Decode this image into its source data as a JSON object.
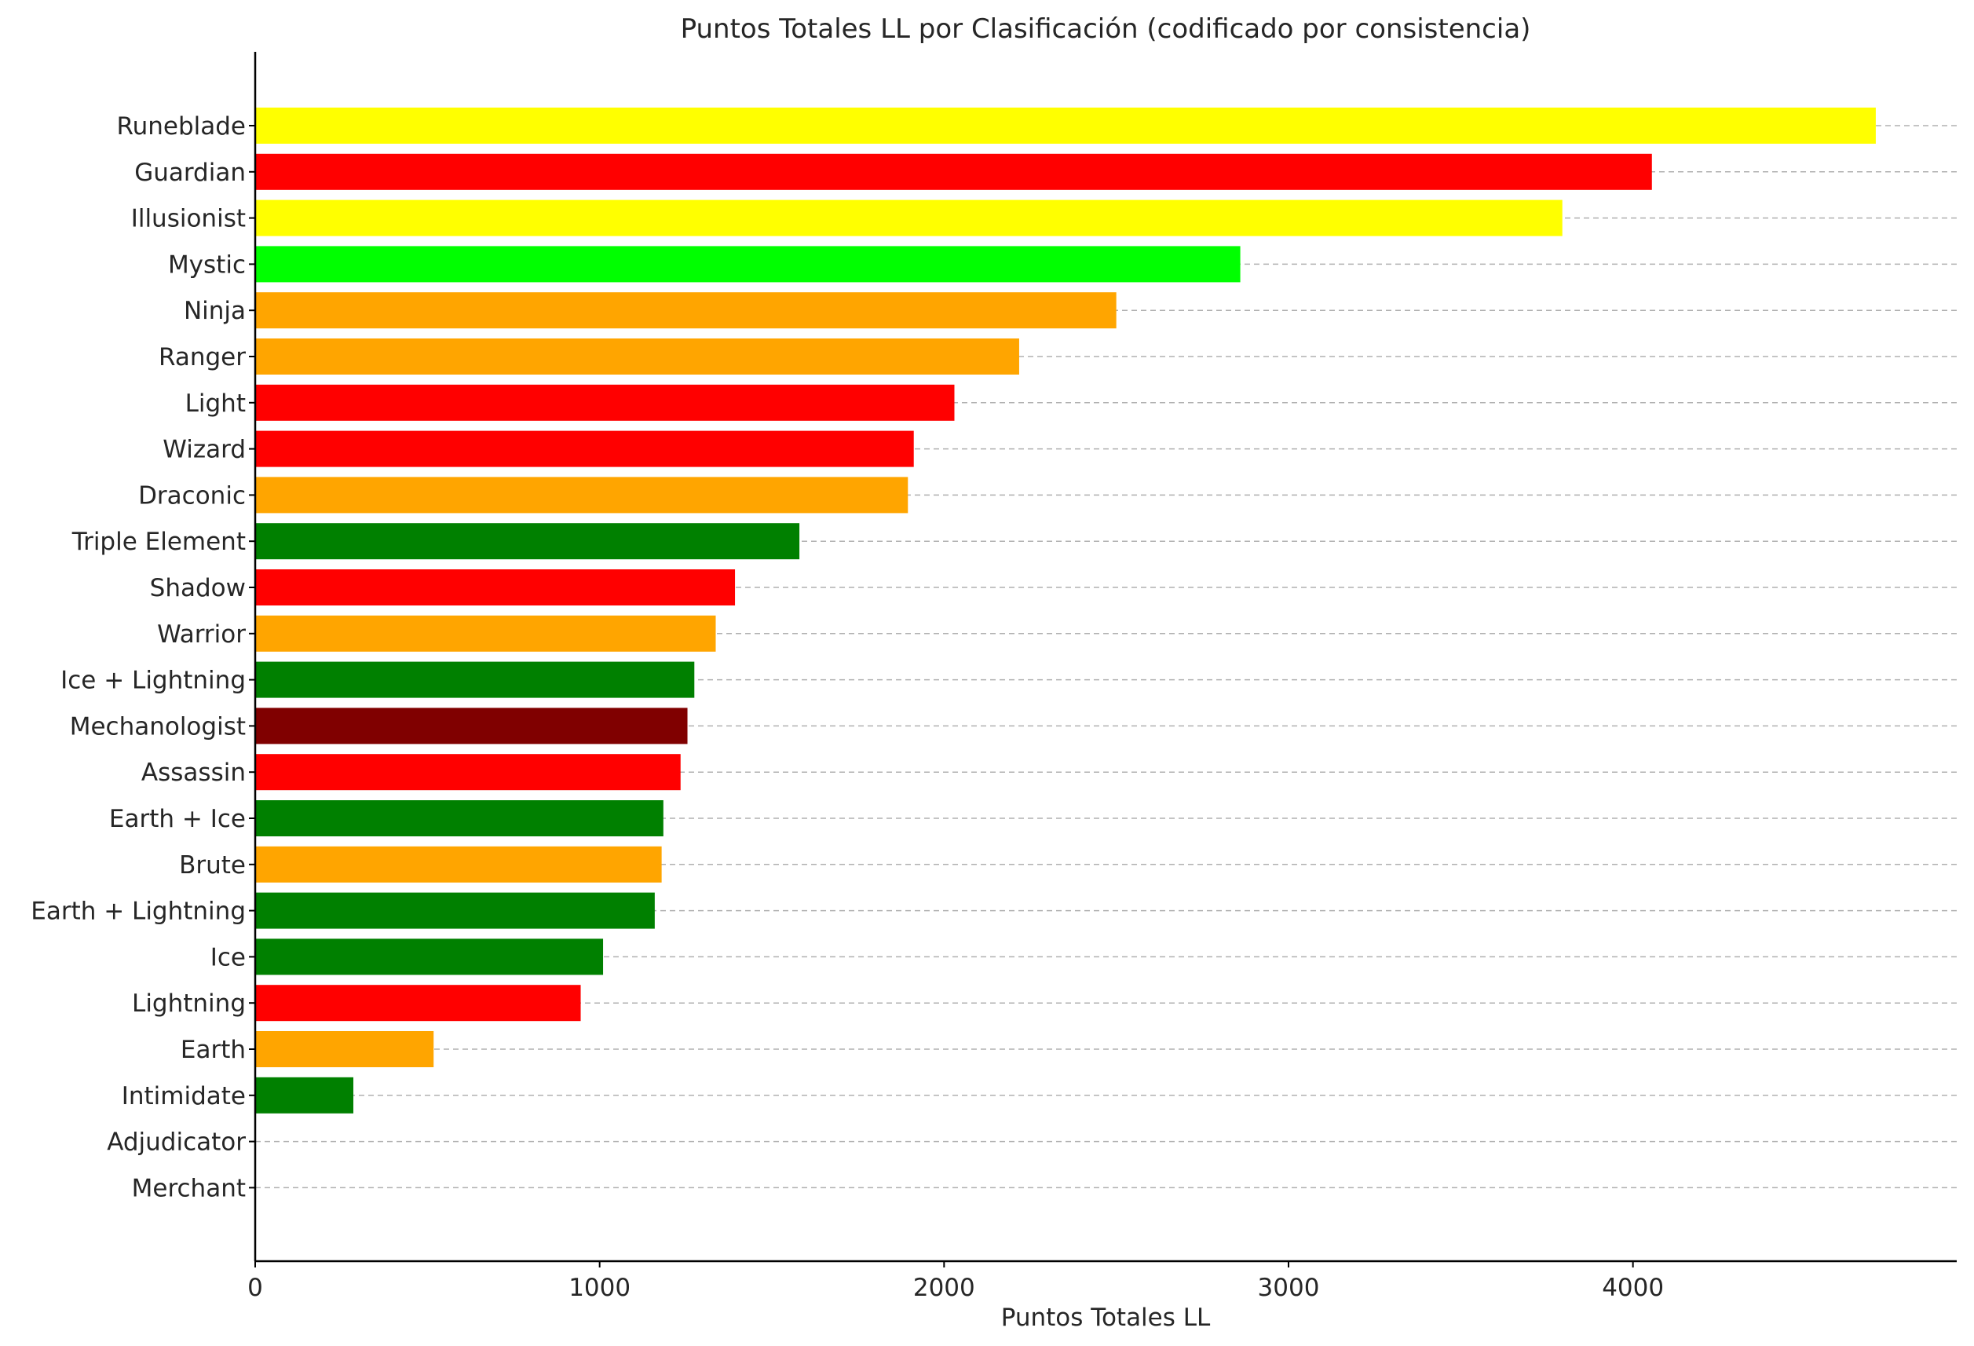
{
  "chart_data": {
    "type": "bar",
    "orientation": "horizontal",
    "title": "Puntos Totales LL por Clasificación (codificado por consistencia)",
    "xlabel": "Puntos Totales LL",
    "ylabel": "",
    "xlim": [
      0,
      4940
    ],
    "xticks": [
      0,
      1000,
      2000,
      3000,
      4000
    ],
    "grid": "horizontal dashed",
    "categories": [
      "Runeblade",
      "Guardian",
      "Illusionist",
      "Mystic",
      "Ninja",
      "Ranger",
      "Light",
      "Wizard",
      "Draconic",
      "Triple Element",
      "Shadow",
      "Warrior",
      "Ice + Lightning",
      "Mechanologist",
      "Assassin",
      "Earth + Ice",
      "Brute",
      "Earth + Lightning",
      "Ice",
      "Lightning",
      "Earth",
      "Intimidate",
      "Adjudicator",
      "Merchant"
    ],
    "values": [
      4705,
      4055,
      3795,
      2860,
      2500,
      2218,
      2030,
      1912,
      1895,
      1580,
      1393,
      1337,
      1275,
      1255,
      1235,
      1185,
      1180,
      1160,
      1010,
      945,
      518,
      285,
      0,
      0
    ],
    "colors": [
      "#ffff00",
      "#ff0000",
      "#ffff00",
      "#00ff00",
      "#ffa500",
      "#ffa500",
      "#ff0000",
      "#ff0000",
      "#ffa500",
      "#008000",
      "#ff0000",
      "#ffa500",
      "#008000",
      "#800000",
      "#ff0000",
      "#008000",
      "#ffa500",
      "#008000",
      "#008000",
      "#ff0000",
      "#ffa500",
      "#008000",
      "#008000",
      "#008000"
    ]
  }
}
